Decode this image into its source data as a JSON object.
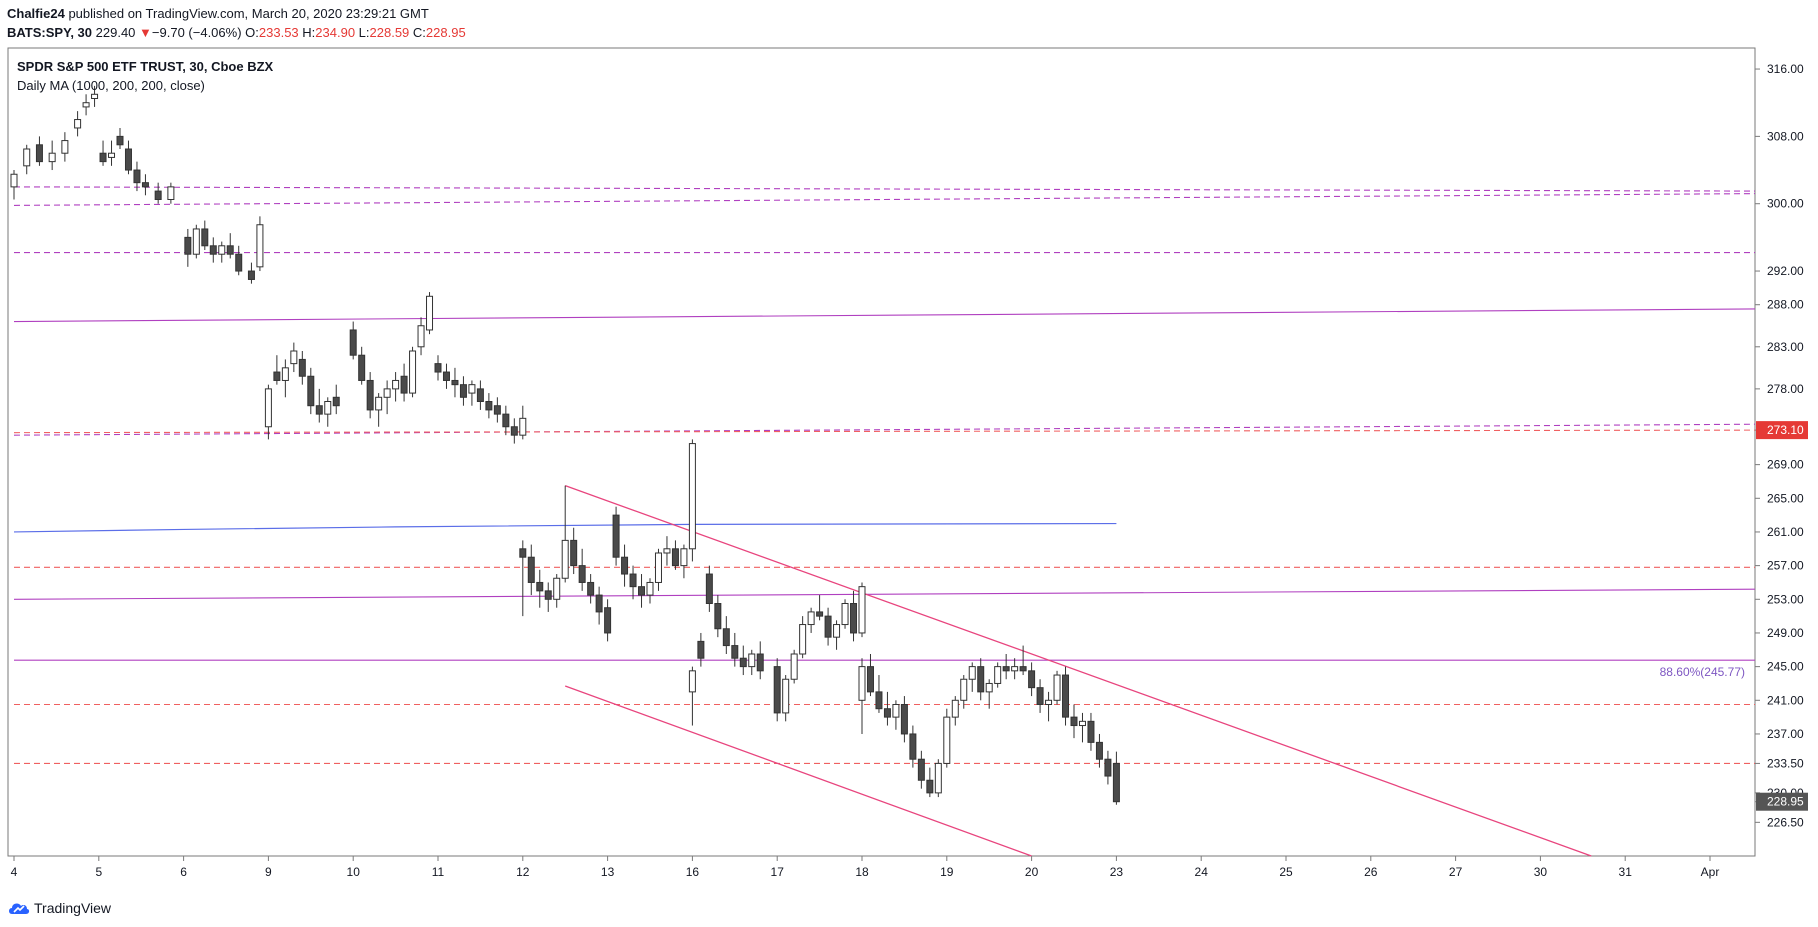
{
  "header": {
    "author": "Chalfie24",
    "published_text": "published on TradingView.com, March 20, 2020 23:29:21 GMT",
    "symbol": "BATS:SPY, 30",
    "last": "229.40",
    "change": "−9.70 (−4.06%)",
    "o_label": "O:",
    "o_value": "233.53",
    "h_label": "H:",
    "h_value": "234.90",
    "l_label": "L:",
    "l_value": "228.59",
    "c_label": "C:",
    "c_value": "228.95"
  },
  "legend": {
    "instrument": "SPDR S&P 500 ETF TRUST, 30, Cboe BZX",
    "indicator": "Daily MA (1000, 200, 200, close)"
  },
  "footer": {
    "brand": "TradingView"
  },
  "colors": {
    "up_candle": "#ffffff",
    "down_candle": "#4a4a4a",
    "candle_outline": "#333333",
    "red_level": "#f06060",
    "purple_level": "#b040c0",
    "blue_ma": "#5b6ee8",
    "trend_channel": "#e8457e",
    "fib_label": "#7e57c2",
    "price_tag": "#e53935",
    "last_tag": "#555555"
  },
  "chart_data": {
    "type": "candlestick",
    "title": "SPDR S&P 500 ETF TRUST, 30, Cboe BZX",
    "x_ticks": [
      "4",
      "5",
      "6",
      "9",
      "10",
      "11",
      "12",
      "13",
      "16",
      "17",
      "18",
      "19",
      "20",
      "23",
      "24",
      "25",
      "26",
      "27",
      "30",
      "31",
      "Apr"
    ],
    "y_ticks": [
      "316.00",
      "308.00",
      "300.00",
      "292.00",
      "288.00",
      "283.00",
      "278.00",
      "273.10",
      "269.00",
      "265.00",
      "261.00",
      "257.00",
      "253.00",
      "249.00",
      "245.00",
      "241.00",
      "237.00",
      "233.50",
      "230.00",
      "228.95",
      "226.50"
    ],
    "ylim": [
      222.5,
      318.5
    ],
    "price_tag": "273.10",
    "last_price_tag": "228.95",
    "fib_label": "88.60%(245.77)",
    "candles": [
      [
        0.0,
        302.0,
        304.0,
        300.5,
        303.5
      ],
      [
        0.15,
        304.5,
        307.0,
        303.5,
        306.5
      ],
      [
        0.3,
        307.0,
        308.0,
        304.5,
        305.0
      ],
      [
        0.45,
        305.0,
        307.5,
        304.0,
        306.0
      ],
      [
        0.6,
        306.0,
        308.5,
        305.0,
        307.5
      ],
      [
        0.75,
        309.0,
        311.0,
        308.0,
        310.0
      ],
      [
        0.85,
        311.5,
        313.0,
        310.5,
        312.0
      ],
      [
        0.95,
        312.5,
        314.0,
        311.5,
        313.0
      ],
      [
        1.05,
        306.0,
        307.5,
        304.5,
        305.0
      ],
      [
        1.15,
        305.5,
        307.5,
        304.5,
        306.0
      ],
      [
        1.25,
        308.0,
        309.0,
        306.5,
        307.0
      ],
      [
        1.35,
        306.5,
        307.5,
        303.5,
        304.0
      ],
      [
        1.45,
        304.0,
        305.0,
        301.5,
        302.5
      ],
      [
        1.55,
        302.5,
        303.5,
        301.0,
        302.0
      ],
      [
        1.7,
        301.5,
        302.5,
        300.0,
        300.5
      ],
      [
        1.85,
        300.5,
        302.5,
        300.0,
        302.0
      ],
      [
        2.05,
        296.0,
        297.0,
        292.5,
        294.0
      ],
      [
        2.15,
        294.0,
        297.5,
        293.5,
        297.0
      ],
      [
        2.25,
        297.0,
        298.0,
        294.5,
        295.0
      ],
      [
        2.35,
        295.0,
        296.0,
        293.0,
        294.0
      ],
      [
        2.45,
        294.0,
        295.5,
        293.0,
        295.0
      ],
      [
        2.55,
        295.0,
        296.5,
        293.5,
        294.0
      ],
      [
        2.65,
        294.0,
        295.0,
        291.5,
        292.0
      ],
      [
        2.8,
        292.0,
        293.0,
        290.5,
        291.0
      ],
      [
        2.9,
        292.5,
        298.5,
        292.0,
        297.5
      ],
      [
        3.0,
        273.5,
        278.5,
        272.0,
        278.0
      ],
      [
        3.1,
        280.0,
        282.0,
        278.5,
        279.0
      ],
      [
        3.2,
        279.0,
        281.5,
        277.0,
        280.5
      ],
      [
        3.3,
        281.0,
        283.5,
        280.0,
        282.5
      ],
      [
        3.4,
        281.5,
        282.5,
        278.5,
        279.5
      ],
      [
        3.5,
        279.5,
        280.5,
        275.0,
        276.0
      ],
      [
        3.6,
        276.0,
        278.0,
        274.0,
        275.0
      ],
      [
        3.7,
        275.0,
        277.0,
        273.5,
        276.5
      ],
      [
        3.8,
        277.0,
        278.5,
        275.0,
        276.0
      ],
      [
        4.0,
        285.0,
        286.0,
        281.5,
        282.0
      ],
      [
        4.1,
        282.0,
        283.0,
        278.5,
        279.0
      ],
      [
        4.2,
        279.0,
        280.0,
        274.5,
        275.5
      ],
      [
        4.3,
        275.5,
        277.5,
        273.5,
        277.0
      ],
      [
        4.4,
        277.0,
        279.0,
        275.0,
        278.0
      ],
      [
        4.5,
        278.0,
        280.0,
        276.5,
        279.0
      ],
      [
        4.6,
        279.5,
        281.0,
        276.5,
        277.5
      ],
      [
        4.7,
        277.5,
        283.0,
        277.0,
        282.5
      ],
      [
        4.8,
        283.0,
        286.5,
        282.0,
        285.5
      ],
      [
        4.9,
        285.0,
        289.5,
        284.5,
        289.0
      ],
      [
        5.0,
        281.0,
        282.0,
        279.0,
        280.0
      ],
      [
        5.1,
        280.0,
        281.0,
        278.0,
        279.0
      ],
      [
        5.2,
        279.0,
        280.5,
        277.0,
        278.5
      ],
      [
        5.3,
        278.5,
        279.5,
        276.0,
        277.0
      ],
      [
        5.4,
        277.5,
        279.0,
        276.0,
        278.5
      ],
      [
        5.5,
        278.0,
        279.0,
        275.5,
        276.5
      ],
      [
        5.6,
        276.5,
        277.5,
        274.5,
        275.5
      ],
      [
        5.7,
        276.0,
        277.0,
        274.0,
        275.0
      ],
      [
        5.8,
        275.0,
        276.0,
        272.5,
        273.5
      ],
      [
        5.9,
        273.5,
        274.5,
        271.5,
        272.5
      ],
      [
        6.0,
        272.5,
        276.0,
        272.0,
        274.5
      ],
      [
        6.0,
        259.0,
        260.0,
        251.0,
        258.0
      ],
      [
        6.1,
        258.0,
        259.5,
        253.5,
        255.0
      ],
      [
        6.2,
        255.0,
        256.5,
        252.0,
        254.0
      ],
      [
        6.3,
        254.0,
        255.0,
        251.5,
        253.0
      ],
      [
        6.4,
        253.0,
        256.0,
        252.0,
        255.5
      ],
      [
        6.5,
        255.5,
        266.5,
        255.0,
        260.0
      ],
      [
        6.6,
        260.0,
        261.5,
        256.0,
        257.0
      ],
      [
        6.7,
        257.0,
        259.0,
        254.0,
        255.0
      ],
      [
        6.8,
        255.0,
        256.0,
        252.5,
        253.5
      ],
      [
        6.9,
        253.5,
        254.5,
        250.0,
        251.5
      ],
      [
        7.0,
        252.0,
        253.0,
        248.0,
        249.0
      ],
      [
        7.1,
        263.0,
        264.0,
        257.0,
        258.0
      ],
      [
        7.2,
        258.0,
        259.5,
        254.5,
        256.0
      ],
      [
        7.3,
        256.0,
        257.0,
        253.0,
        254.5
      ],
      [
        7.4,
        254.5,
        256.0,
        252.0,
        253.5
      ],
      [
        7.5,
        253.5,
        255.5,
        252.5,
        255.0
      ],
      [
        7.6,
        255.0,
        259.0,
        254.0,
        258.5
      ],
      [
        7.7,
        258.5,
        260.5,
        257.0,
        259.0
      ],
      [
        7.8,
        259.0,
        260.0,
        256.5,
        257.0
      ],
      [
        7.9,
        257.0,
        259.5,
        255.5,
        259.0
      ],
      [
        8.0,
        259.0,
        272.0,
        257.5,
        271.5
      ],
      [
        8.0,
        242.0,
        245.0,
        238.0,
        244.5
      ],
      [
        8.1,
        248.0,
        249.0,
        245.0,
        246.0
      ],
      [
        8.2,
        256.0,
        257.0,
        251.5,
        252.5
      ],
      [
        8.3,
        252.5,
        253.5,
        248.5,
        249.5
      ],
      [
        8.4,
        249.5,
        251.0,
        246.5,
        247.5
      ],
      [
        8.5,
        247.5,
        249.0,
        245.0,
        246.0
      ],
      [
        8.6,
        246.0,
        247.5,
        244.0,
        245.0
      ],
      [
        8.7,
        245.0,
        247.0,
        244.0,
        246.5
      ],
      [
        8.8,
        246.5,
        248.0,
        243.5,
        244.5
      ],
      [
        9.0,
        245.0,
        246.0,
        238.5,
        239.5
      ],
      [
        9.1,
        239.5,
        244.0,
        238.5,
        243.5
      ],
      [
        9.2,
        243.5,
        247.0,
        243.0,
        246.5
      ],
      [
        9.3,
        246.5,
        251.0,
        246.0,
        250.0
      ],
      [
        9.4,
        250.0,
        252.0,
        249.0,
        251.5
      ],
      [
        9.5,
        251.5,
        253.5,
        250.5,
        251.0
      ],
      [
        9.6,
        251.0,
        252.0,
        247.5,
        248.5
      ],
      [
        9.7,
        248.5,
        250.5,
        247.0,
        250.0
      ],
      [
        9.8,
        250.0,
        253.0,
        249.5,
        252.5
      ],
      [
        9.9,
        252.5,
        254.0,
        248.0,
        249.0
      ],
      [
        10.0,
        249.0,
        255.0,
        248.5,
        254.5
      ],
      [
        10.0,
        241.0,
        246.0,
        237.0,
        245.0
      ],
      [
        10.1,
        245.0,
        246.5,
        241.5,
        242.0
      ],
      [
        10.2,
        242.0,
        244.0,
        239.5,
        240.0
      ],
      [
        10.3,
        240.0,
        242.0,
        238.0,
        239.0
      ],
      [
        10.4,
        239.0,
        241.0,
        237.5,
        240.5
      ],
      [
        10.5,
        240.5,
        241.5,
        236.0,
        237.0
      ],
      [
        10.6,
        237.0,
        238.0,
        233.0,
        234.0
      ],
      [
        10.7,
        234.0,
        235.0,
        230.5,
        231.5
      ],
      [
        10.8,
        231.5,
        233.0,
        229.5,
        230.0
      ],
      [
        10.9,
        230.0,
        234.0,
        229.5,
        233.5
      ],
      [
        11.0,
        233.5,
        240.0,
        233.0,
        239.0
      ],
      [
        11.1,
        239.0,
        241.5,
        238.0,
        241.0
      ],
      [
        11.2,
        241.0,
        244.0,
        240.0,
        243.5
      ],
      [
        11.3,
        243.5,
        245.5,
        242.0,
        245.0
      ],
      [
        11.4,
        245.0,
        246.0,
        241.0,
        242.0
      ],
      [
        11.5,
        242.0,
        243.5,
        240.0,
        243.0
      ],
      [
        11.6,
        243.0,
        245.5,
        242.5,
        245.0
      ],
      [
        11.7,
        245.0,
        246.5,
        243.5,
        244.5
      ],
      [
        11.8,
        244.5,
        246.0,
        243.5,
        245.0
      ],
      [
        11.9,
        245.0,
        247.5,
        244.0,
        244.5
      ],
      [
        12.0,
        244.5,
        245.5,
        241.5,
        242.5
      ],
      [
        12.1,
        242.5,
        243.5,
        239.5,
        240.5
      ],
      [
        12.2,
        240.5,
        242.0,
        238.5,
        241.0
      ],
      [
        12.3,
        241.0,
        244.5,
        240.5,
        244.0
      ],
      [
        12.4,
        244.0,
        245.0,
        238.0,
        239.0
      ],
      [
        12.5,
        239.0,
        240.5,
        236.5,
        238.0
      ],
      [
        12.6,
        238.0,
        239.5,
        236.0,
        238.5
      ],
      [
        12.7,
        238.5,
        239.5,
        235.0,
        236.0
      ],
      [
        12.8,
        236.0,
        237.0,
        233.0,
        234.0
      ],
      [
        12.9,
        234.0,
        235.0,
        231.0,
        232.0
      ],
      [
        13.0,
        233.5,
        234.9,
        228.59,
        228.95
      ]
    ],
    "horizontal_levels": [
      {
        "style": "dashed",
        "color": "purple",
        "start": 0.0,
        "end": 20.8,
        "y0": 302.0,
        "y1": 301.5
      },
      {
        "style": "dashed",
        "color": "purple",
        "start": 0.0,
        "end": 20.8,
        "y0": 299.8,
        "y1": 301.2
      },
      {
        "style": "dashed",
        "color": "purple",
        "start": 0.0,
        "end": 20.8,
        "y0": 294.2,
        "y1": 294.2
      },
      {
        "style": "solid",
        "color": "purple",
        "start": 0.0,
        "end": 20.8,
        "y0": 286.0,
        "y1": 287.5
      },
      {
        "style": "dashed",
        "color": "purple",
        "start": 0.0,
        "end": 20.8,
        "y0": 272.5,
        "y1": 273.8
      },
      {
        "style": "dashed",
        "color": "red",
        "start": 0.0,
        "end": 20.8,
        "y0": 272.8,
        "y1": 273.1
      },
      {
        "style": "dashed",
        "color": "red",
        "start": 0.0,
        "end": 20.8,
        "y0": 256.8,
        "y1": 256.8
      },
      {
        "style": "solid",
        "color": "purple",
        "start": 0.0,
        "end": 20.8,
        "y0": 253.0,
        "y1": 254.2
      },
      {
        "style": "solid",
        "color": "purple",
        "start": 0.0,
        "end": 20.8,
        "y0": 245.77,
        "y1": 245.77
      },
      {
        "style": "dashed",
        "color": "red",
        "start": 0.0,
        "end": 20.8,
        "y0": 240.5,
        "y1": 240.5
      },
      {
        "style": "dashed",
        "color": "red",
        "start": 0.0,
        "end": 20.8,
        "y0": 233.5,
        "y1": 233.5
      }
    ],
    "ma_line": [
      [
        0.0,
        261.0
      ],
      [
        2.0,
        261.3
      ],
      [
        4.5,
        261.6
      ],
      [
        8.0,
        261.9
      ],
      [
        13.0,
        262.0
      ]
    ],
    "trendlines": [
      {
        "x0": 6.5,
        "y0": 266.5,
        "x1": 18.6,
        "y1": 222.5
      },
      {
        "x0": 6.5,
        "y0": 242.7,
        "x1": 12.0,
        "y1": 222.5
      }
    ]
  }
}
